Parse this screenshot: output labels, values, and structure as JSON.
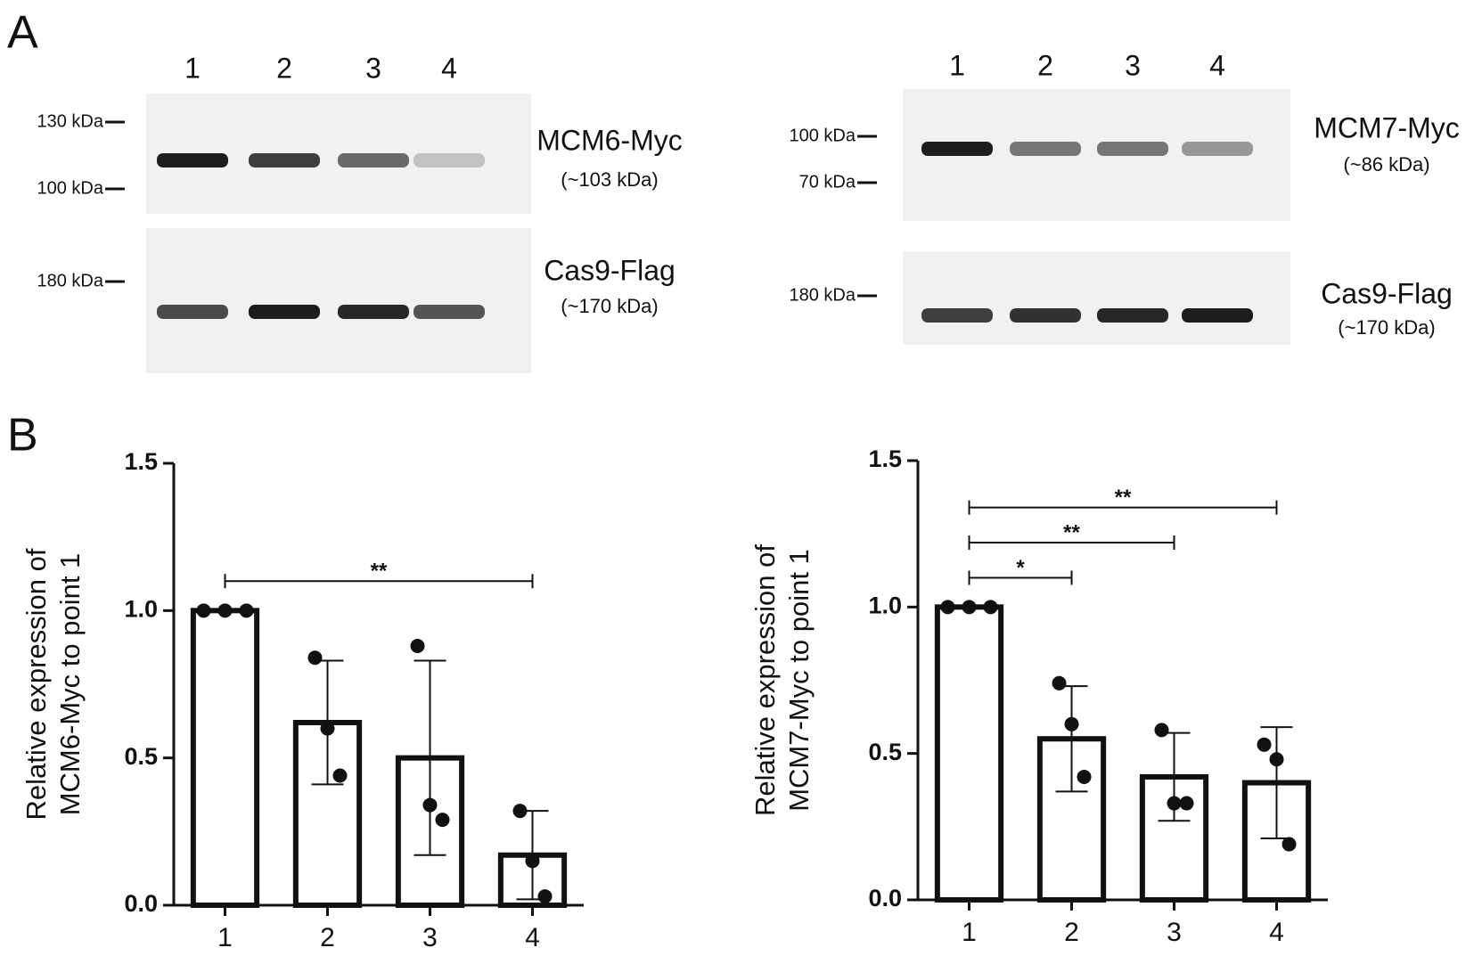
{
  "panels": [
    "A",
    "B"
  ],
  "blots": [
    {
      "lanes": [
        "1",
        "2",
        "3",
        "4"
      ],
      "panels": [
        {
          "markers": [
            "130 kDa",
            "100 kDa"
          ],
          "name": "MCM6-Myc",
          "size": "(~103 kDa)"
        },
        {
          "markers": [
            "180 kDa"
          ],
          "name": "Cas9-Flag",
          "size": "(~170 kDa)"
        }
      ]
    },
    {
      "lanes": [
        "1",
        "2",
        "3",
        "4"
      ],
      "panels": [
        {
          "markers": [
            "100 kDa",
            "70 kDa"
          ],
          "name": "MCM7-Myc",
          "size": "(~86 kDa)"
        },
        {
          "markers": [
            "180 kDa"
          ],
          "name": "Cas9-Flag",
          "size": "(~170 kDa)"
        }
      ]
    }
  ],
  "chart_data": [
    {
      "type": "bar",
      "ylabel": [
        "Relative expression of",
        "MCM6-Myc to point 1"
      ],
      "categories": [
        "1",
        "2",
        "3",
        "4"
      ],
      "values": [
        1.0,
        0.62,
        0.5,
        0.17
      ],
      "errors": [
        0,
        0.21,
        0.33,
        0.15
      ],
      "points": [
        [
          1.0,
          1.0,
          1.0
        ],
        [
          0.84,
          0.6,
          0.44
        ],
        [
          0.88,
          0.34,
          0.29
        ],
        [
          0.32,
          0.15,
          0.03
        ]
      ],
      "significance": [
        {
          "label": "**",
          "between": [
            "1",
            "4"
          ]
        }
      ],
      "ylim": [
        0,
        1.5
      ],
      "yticks": [
        {
          "value": 0,
          "label": "0.0"
        },
        0.5,
        {
          "value": 1,
          "label": "1.0"
        },
        1.5
      ],
      "color": "#ffffff"
    },
    {
      "type": "bar",
      "ylabel": [
        "Relative expression of",
        "MCM7-Myc to point 1"
      ],
      "categories": [
        "1",
        "2",
        "3",
        "4"
      ],
      "values": [
        1.0,
        0.55,
        0.42,
        0.4
      ],
      "errors": [
        0,
        0.18,
        0.15,
        0.19
      ],
      "points": [
        [
          1.0,
          1.0,
          1.0
        ],
        [
          0.74,
          0.6,
          0.42
        ],
        [
          0.58,
          0.33,
          0.33
        ],
        [
          0.53,
          0.48,
          0.19
        ]
      ],
      "significance": [
        {
          "label": "*",
          "between": [
            "1",
            "2"
          ]
        },
        {
          "label": "**",
          "between": [
            "1",
            "3"
          ]
        },
        {
          "label": "**",
          "between": [
            "1",
            "4"
          ]
        }
      ],
      "ylim": [
        0,
        1.5
      ],
      "yticks": [
        {
          "value": 0,
          "label": "0.0"
        },
        0.5,
        {
          "value": 1,
          "label": "1.0"
        },
        1.5
      ],
      "color": "#ffffff"
    }
  ]
}
